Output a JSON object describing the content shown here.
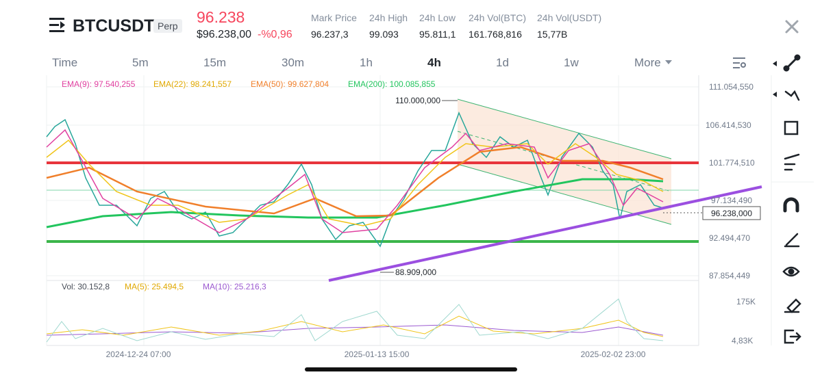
{
  "header": {
    "symbol": "BTCUSDT",
    "tag": "Perp",
    "price": "96.238",
    "price_fiat": "$96.238,00",
    "change": "-%0,96",
    "stats": [
      {
        "label": "Mark Price",
        "value": "96.237,3"
      },
      {
        "label": "24h High",
        "value": "99.093"
      },
      {
        "label": "24h Low",
        "value": "95.811,1"
      },
      {
        "label": "24h Vol(BTC)",
        "value": "161.768,816"
      },
      {
        "label": "24h Vol(USDT)",
        "value": "15,77B"
      }
    ]
  },
  "timeframes": [
    "Time",
    "5m",
    "15m",
    "30m",
    "1h",
    "4h",
    "1d",
    "1w",
    "More"
  ],
  "indicators": [
    "EMA(9): 97.540,255",
    "EMA(22): 98.241,557",
    "EMA(50): 99.627,804",
    "EMA(200): 100.085,855"
  ],
  "price_axis": [
    "111.054,550",
    "106.414,530",
    "101.774,510",
    "97.134,490",
    "92.494,470",
    "87.854,449"
  ],
  "current_price": "96.238,000",
  "annotations": {
    "high": "110.000,000",
    "low": "88.909,000"
  },
  "volume": {
    "labels": [
      "Vol: 30.152,8",
      "MA(5): 25.494,5",
      "MA(10): 25.216,3"
    ],
    "axis": [
      "175K",
      "4,83K"
    ]
  },
  "time_axis": [
    "2024-12-24 07:00",
    "2025-01-13 15:00",
    "2025-02-02 23:00"
  ]
}
